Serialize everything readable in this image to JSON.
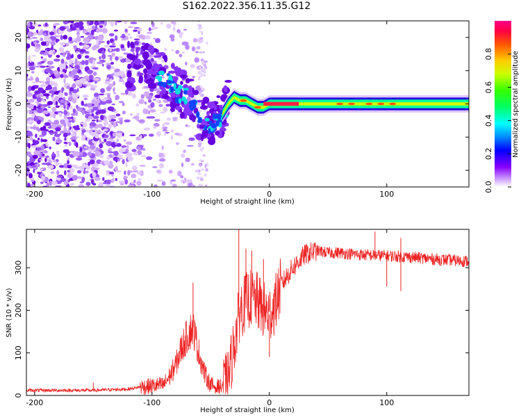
{
  "title": "S162.2022.356.11.35.G12",
  "chart_data": [
    {
      "type": "heatmap",
      "xlabel": "Height of straight line (km)",
      "ylabel": "Frequency (Hz)",
      "xlim": [
        -207,
        170
      ],
      "ylim": [
        -25,
        25
      ],
      "xticks": [
        -200,
        -100,
        0,
        100
      ],
      "yticks": [
        -20,
        -10,
        0,
        10,
        20
      ],
      "colorbar": {
        "label": "Normalized spectral amplitude",
        "range": [
          0,
          1
        ],
        "ticks": [
          0.0,
          0.2,
          0.4,
          0.6,
          0.8
        ],
        "colors": [
          "#ffffff",
          "#cc99ff",
          "#7700ff",
          "#0000ff",
          "#00aaff",
          "#00ffff",
          "#00ff66",
          "#33ff00",
          "#ccff00",
          "#ffcc00",
          "#ff5500",
          "#ff0066",
          "#ff0088"
        ]
      },
      "trace": {
        "x": [
          -120,
          -110,
          -100,
          -95,
          -90,
          -85,
          -80,
          -75,
          -70,
          -65,
          -60,
          -55,
          -50,
          -45,
          -40,
          -35,
          -30,
          -25,
          -20,
          -15,
          -10,
          -5,
          0,
          20,
          50,
          80,
          110,
          140,
          170
        ],
        "y": [
          11,
          12,
          10,
          9,
          8,
          6,
          4,
          3,
          2,
          0,
          -3,
          -5,
          -6,
          -5,
          -3,
          0,
          2,
          1,
          1,
          0,
          -1,
          -1,
          0,
          0,
          0,
          0,
          0,
          0,
          0
        ]
      }
    },
    {
      "type": "line",
      "xlabel": "Height of straight line (km)",
      "ylabel": "SNR (10 * v/v)",
      "xlim": [
        -207,
        170
      ],
      "ylim": [
        0,
        390
      ],
      "xticks": [
        -200,
        -100,
        0,
        100
      ],
      "yticks": [
        0,
        100,
        200,
        300
      ],
      "color": "#ee2222",
      "envelope": {
        "x": [
          -207,
          -150,
          -120,
          -110,
          -100,
          -90,
          -85,
          -80,
          -75,
          -70,
          -65,
          -60,
          -55,
          -50,
          -45,
          -40,
          -35,
          -30,
          -25,
          -20,
          -15,
          -10,
          -5,
          0,
          5,
          10,
          20,
          30,
          40,
          50,
          60,
          80,
          100,
          120,
          140,
          170
        ],
        "y": [
          12,
          12,
          15,
          20,
          22,
          25,
          45,
          70,
          110,
          140,
          160,
          100,
          50,
          25,
          20,
          20,
          40,
          120,
          200,
          220,
          230,
          220,
          200,
          190,
          215,
          260,
          300,
          330,
          340,
          335,
          335,
          330,
          328,
          325,
          320,
          315
        ]
      },
      "spikes": [
        {
          "x": -150,
          "y": 30
        },
        {
          "x": -65,
          "y": 265
        },
        {
          "x": -26,
          "y": 395
        },
        {
          "x": -20,
          "y": 345
        },
        {
          "x": -15,
          "y": 340
        },
        {
          "x": -5,
          "y": 320
        },
        {
          "x": 0,
          "y": 90
        },
        {
          "x": 90,
          "y": 385
        },
        {
          "x": 100,
          "y": 255
        },
        {
          "x": 112,
          "y": 245
        },
        {
          "x": 112,
          "y": 370
        }
      ]
    }
  ]
}
